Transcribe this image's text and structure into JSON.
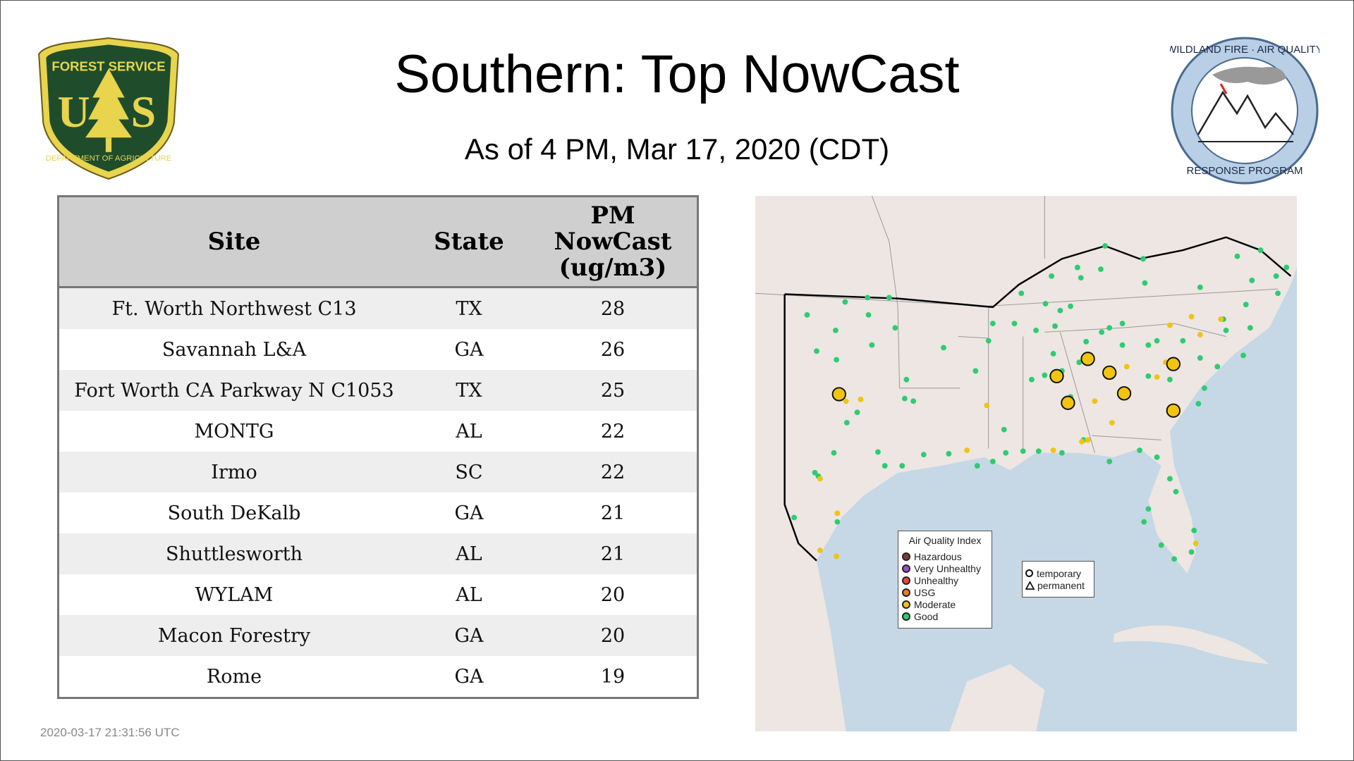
{
  "header": {
    "title": "Southern: Top NowCast",
    "subtitle": "As of  4 PM, Mar 17, 2020 (CDT)"
  },
  "logos": {
    "left": "FOREST SERVICE U S DEPARTMENT OF AGRICULTURE",
    "right": "WILDLAND FIRE · AIR QUALITY RESPONSE PROGRAM"
  },
  "table": {
    "headers": [
      "Site",
      "State",
      "PM NowCast (ug/m3)"
    ],
    "rows": [
      [
        "Ft. Worth Northwest C13",
        "TX",
        "28"
      ],
      [
        "Savannah L&A",
        "GA",
        "26"
      ],
      [
        "Fort Worth CA Parkway N C1053",
        "TX",
        "25"
      ],
      [
        "MONTG",
        "AL",
        "22"
      ],
      [
        "Irmo",
        "SC",
        "22"
      ],
      [
        "South DeKalb",
        "GA",
        "21"
      ],
      [
        "Shuttlesworth",
        "AL",
        "21"
      ],
      [
        "WYLAM",
        "AL",
        "20"
      ],
      [
        "Macon Forestry",
        "GA",
        "20"
      ],
      [
        "Rome",
        "GA",
        "19"
      ]
    ]
  },
  "map": {
    "legend_title": "Air Quality Index",
    "aqi": [
      {
        "label": "Hazardous",
        "color": "#7e3a3a"
      },
      {
        "label": "Very Unhealthy",
        "color": "#9a4fc0"
      },
      {
        "label": "Unhealthy",
        "color": "#e8473c"
      },
      {
        "label": "USG",
        "color": "#e67e22"
      },
      {
        "label": "Moderate",
        "color": "#f1c40f"
      },
      {
        "label": "Good",
        "color": "#2ecc71"
      }
    ],
    "shapes": [
      {
        "label": "temporary",
        "icon": "circle"
      },
      {
        "label": "permanent",
        "icon": "triangle"
      }
    ],
    "land_color": "#ede6e3",
    "water_color": "#c6d7e6"
  },
  "timestamp": "2020-03-17 21:31:56 UTC"
}
